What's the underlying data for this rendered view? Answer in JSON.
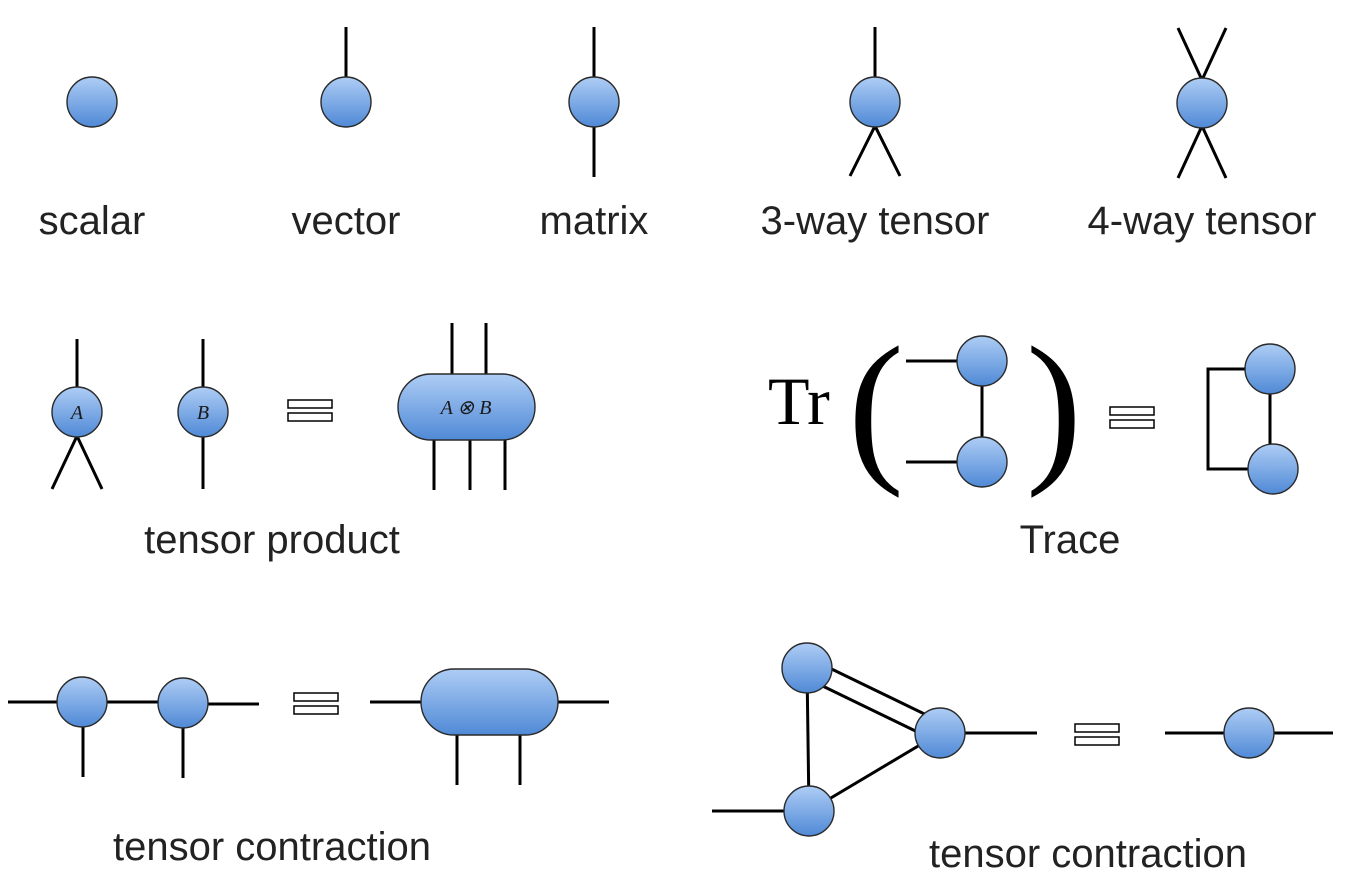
{
  "labels": {
    "scalar": "scalar",
    "vector": "vector",
    "matrix": "matrix",
    "three_way": "3-way tensor",
    "four_way": "4-way tensor",
    "tensor_product": "tensor product",
    "trace": "Trace",
    "contraction_left": "tensor contraction",
    "contraction_right": "tensor contraction"
  },
  "math": {
    "tr": "Tr",
    "open_paren": "(",
    "close_paren": ")"
  },
  "nodes": {
    "a": "A",
    "b": "B",
    "a_otimes_b": "A ⊗ B"
  },
  "colors": {
    "node_light": "#aecdf5",
    "node_dark": "#4f89d6",
    "edge": "#000000"
  }
}
